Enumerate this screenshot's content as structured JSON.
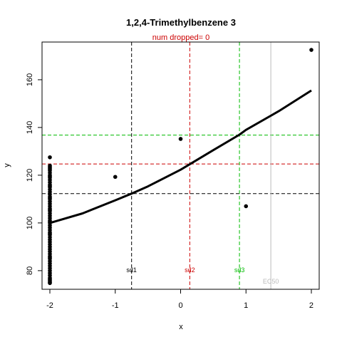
{
  "chart_data": {
    "type": "scatter",
    "title": "1,2,4-Trimethylbenzene 3",
    "subtitle": "num dropped= 0",
    "xlabel": "x",
    "ylabel": "y",
    "xlim": [
      -2.12,
      2.12
    ],
    "ylim": [
      72.2,
      175.8
    ],
    "x_ticks": [
      -2,
      -1,
      0,
      1,
      2
    ],
    "y_ticks": [
      80,
      100,
      120,
      140,
      160
    ],
    "grid": false,
    "points": {
      "x": [
        -2,
        -2,
        -2,
        -2,
        -2,
        -2,
        -2,
        -2,
        -2,
        -2,
        -2,
        -2,
        -2,
        -2,
        -2,
        -2,
        -2,
        -2,
        -2,
        -2,
        -2,
        -2,
        -2,
        -2,
        -2,
        -2,
        -2,
        -2,
        -2,
        -2,
        -2,
        -2,
        -2,
        -2,
        -2,
        -2,
        -2,
        -2,
        -2,
        -2,
        -2,
        -2,
        -2,
        -2,
        -2,
        -2,
        -2,
        -2,
        -2,
        -2,
        -2,
        -2,
        -2,
        -2,
        -2,
        -2,
        -2,
        -2,
        -2,
        -2,
        -2,
        -2,
        -2,
        -1,
        0,
        1,
        2
      ],
      "y": [
        75,
        76,
        77,
        78,
        79,
        80,
        81,
        82,
        83,
        84,
        85,
        86,
        87,
        88,
        89,
        90,
        91,
        92,
        93,
        94,
        95,
        96,
        97,
        98,
        99,
        100,
        101,
        102,
        103,
        104,
        105,
        106,
        107,
        108,
        109,
        110,
        111,
        112,
        113,
        114,
        115,
        116,
        117,
        118,
        119,
        120,
        121,
        122,
        123,
        124,
        127.5,
        74.8,
        75.5,
        76.5,
        85.5,
        95.5,
        100.5,
        105.5,
        110.5,
        115.5,
        119.5,
        122.5,
        123.5,
        119.3,
        135.2,
        107,
        172.5
      ]
    },
    "fit_curve": {
      "x": [
        -2,
        -1.5,
        -1,
        -0.75,
        -0.5,
        0,
        0.5,
        0.9,
        1,
        1.5,
        2
      ],
      "y": [
        100,
        104,
        109.5,
        112.3,
        115.3,
        122.3,
        130.5,
        137,
        139,
        146.8,
        155.5
      ]
    },
    "hlines": [
      {
        "y": 112.3,
        "color": "#000000"
      },
      {
        "y": 124.7,
        "color": "#cc0000"
      },
      {
        "y": 136.8,
        "color": "#00bb00"
      }
    ],
    "vlines": [
      {
        "x": -0.75,
        "label": "sd1",
        "color": "#000000",
        "dashed": true
      },
      {
        "x": 0.14,
        "label": "sd2",
        "color": "#cc0000",
        "dashed": true
      },
      {
        "x": 0.9,
        "label": "sd3",
        "color": "#00bb00",
        "dashed": true
      },
      {
        "x": 1.38,
        "label": "EC50",
        "color": "#bbbbbb",
        "dashed": false
      }
    ],
    "colors": {
      "title": "#000000",
      "subtitle": "#cc0000",
      "points": "#000000",
      "fit": "#000000"
    }
  }
}
